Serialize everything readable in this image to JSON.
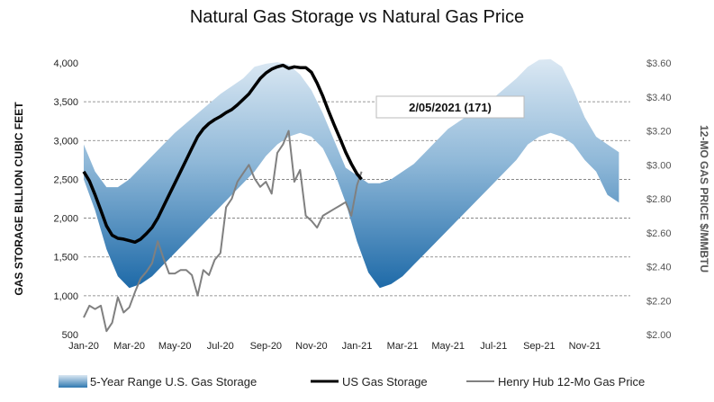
{
  "chart_data": {
    "type": "line",
    "title": "Natural Gas Storage vs Natural Gas Price",
    "ylabel": "GAS STORAGE BILLION CUBIC FEET",
    "y2label": "12-MO GAS PRICE $/MMBTU",
    "ylim": [
      500,
      4000
    ],
    "y2lim": [
      2.0,
      3.6
    ],
    "yticks": [
      "4,000",
      "3,500",
      "3,000",
      "2,500",
      "2,000",
      "1,500",
      "1,000",
      "500"
    ],
    "y2ticks": [
      "$3.60",
      "$3.40",
      "$3.20",
      "$3.00",
      "$2.80",
      "$2.60",
      "$2.40",
      "$2.20",
      "$2.00"
    ],
    "xticks": [
      "Jan-20",
      "Mar-20",
      "May-20",
      "Jul-20",
      "Sep-20",
      "Nov-20",
      "Jan-21",
      "Mar-21",
      "May-21",
      "Jul-21",
      "Sep-21",
      "Nov-21"
    ],
    "grid": true,
    "legend_position": "bottom",
    "annotation": "2/05/2021  (171)",
    "series": [
      {
        "name": "5-Year Range U.S. Gas Storage",
        "axis": "left",
        "color": "#2f78b0",
        "x_months": [
          0,
          0.5,
          1,
          1.5,
          2,
          2.5,
          3,
          3.5,
          4,
          5,
          6,
          7,
          7.5,
          8,
          8.5,
          9,
          9.5,
          10,
          10.5,
          11,
          11.5,
          12,
          12.5,
          13,
          13.5,
          14,
          14.5,
          15,
          16,
          17,
          18,
          19,
          19.5,
          20,
          20.5,
          21,
          21.5,
          22,
          22.5,
          23,
          23.5
        ],
        "high": [
          2950,
          2600,
          2400,
          2400,
          2500,
          2650,
          2800,
          2950,
          3100,
          3350,
          3600,
          3800,
          3950,
          3990,
          4010,
          3980,
          3850,
          3650,
          3350,
          3000,
          2650,
          2550,
          2450,
          2450,
          2500,
          2600,
          2700,
          2850,
          3150,
          3350,
          3550,
          3800,
          3950,
          4040,
          4050,
          3950,
          3650,
          3300,
          3050,
          2950,
          2850
        ],
        "low": [
          2500,
          2100,
          1600,
          1250,
          1100,
          1150,
          1250,
          1400,
          1550,
          1850,
          2150,
          2450,
          2600,
          2800,
          2950,
          3050,
          3100,
          3050,
          2900,
          2600,
          2200,
          1700,
          1300,
          1100,
          1150,
          1250,
          1400,
          1550,
          1850,
          2150,
          2450,
          2750,
          2950,
          3050,
          3100,
          3050,
          2950,
          2750,
          2600,
          2300,
          2200
        ]
      },
      {
        "name": "US Gas Storage",
        "axis": "left",
        "color": "#000000",
        "x_months": [
          0,
          0.25,
          0.5,
          0.75,
          1,
          1.25,
          1.5,
          1.75,
          2,
          2.25,
          2.5,
          2.75,
          3,
          3.25,
          3.5,
          3.75,
          4,
          4.25,
          4.5,
          4.75,
          5,
          5.25,
          5.5,
          5.75,
          6,
          6.25,
          6.5,
          6.75,
          7,
          7.25,
          7.5,
          7.75,
          8,
          8.25,
          8.5,
          8.75,
          9,
          9.25,
          9.5,
          9.75,
          10,
          10.25,
          10.5,
          10.75,
          11,
          11.25,
          11.5,
          11.75,
          12,
          12.2
        ],
        "values": [
          2600,
          2480,
          2300,
          2100,
          1900,
          1780,
          1740,
          1730,
          1710,
          1690,
          1730,
          1800,
          1880,
          2000,
          2150,
          2300,
          2450,
          2600,
          2750,
          2900,
          3050,
          3150,
          3220,
          3270,
          3310,
          3360,
          3400,
          3460,
          3530,
          3600,
          3700,
          3800,
          3870,
          3920,
          3950,
          3970,
          3930,
          3950,
          3940,
          3940,
          3880,
          3740,
          3570,
          3380,
          3200,
          3030,
          2850,
          2700,
          2570,
          2500
        ]
      },
      {
        "name": "Henry Hub 12-Mo Gas Price",
        "axis": "right",
        "color": "#808080",
        "x_months": [
          0,
          0.25,
          0.5,
          0.75,
          1,
          1.25,
          1.5,
          1.75,
          2,
          2.25,
          2.5,
          2.75,
          3,
          3.25,
          3.5,
          3.75,
          4,
          4.25,
          4.5,
          4.75,
          5,
          5.25,
          5.5,
          5.75,
          6,
          6.25,
          6.5,
          6.75,
          7,
          7.25,
          7.5,
          7.75,
          8,
          8.25,
          8.5,
          8.75,
          9,
          9.25,
          9.5,
          9.75,
          10,
          10.25,
          10.5,
          10.75,
          11,
          11.25,
          11.5,
          11.75,
          12,
          12.2
        ],
        "values": [
          2.1,
          2.17,
          2.15,
          2.17,
          2.02,
          2.07,
          2.22,
          2.13,
          2.16,
          2.25,
          2.33,
          2.37,
          2.42,
          2.55,
          2.45,
          2.36,
          2.36,
          2.38,
          2.38,
          2.35,
          2.23,
          2.38,
          2.35,
          2.44,
          2.48,
          2.75,
          2.8,
          2.9,
          2.95,
          3.0,
          2.92,
          2.87,
          2.9,
          2.83,
          3.07,
          3.12,
          3.2,
          2.9,
          2.97,
          2.7,
          2.67,
          2.63,
          2.7,
          2.72,
          2.74,
          2.76,
          2.78,
          2.7,
          2.88,
          2.96
        ]
      }
    ]
  }
}
